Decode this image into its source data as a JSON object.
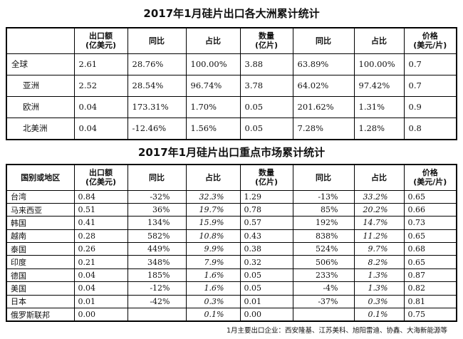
{
  "table1": {
    "title": "2017年1月硅片出口各大洲累计统计",
    "headers": [
      "出口额\n(亿美元)",
      "同比",
      "占比",
      "数量\n(亿片)",
      "同比",
      "占比",
      "价格\n(美元/片)"
    ],
    "rows": [
      [
        "全球",
        "2.61",
        "28.76%",
        "100.00%",
        "3.88",
        "63.89%",
        "100.00%",
        "0.7"
      ],
      [
        "亚洲",
        "2.52",
        "28.54%",
        "96.74%",
        "3.78",
        "64.02%",
        "97.42%",
        "0.7"
      ],
      [
        "欧洲",
        "0.04",
        "173.31%",
        "1.70%",
        "0.05",
        "201.62%",
        "1.31%",
        "0.9"
      ],
      [
        "北美洲",
        "0.04",
        "-12.46%",
        "1.56%",
        "0.05",
        "7.28%",
        "1.28%",
        "0.8"
      ]
    ]
  },
  "table2": {
    "title": "2017年1月硅片出口重点市场累计统计",
    "headers": [
      "国别或地区",
      "出口额\n(亿美元)",
      "同比",
      "占比",
      "数量\n(亿片)",
      "同比",
      "占比",
      "价格\n(美元/片)"
    ],
    "rows": [
      [
        "台湾",
        "0.84",
        "-32%",
        "32.3%",
        "1.29",
        "-13%",
        "33.2%",
        "0.65"
      ],
      [
        "马来西亚",
        "0.51",
        "36%",
        "19.7%",
        "0.78",
        "85%",
        "20.2%",
        "0.66"
      ],
      [
        "韩国",
        "0.41",
        "134%",
        "15.9%",
        "0.57",
        "192%",
        "14.7%",
        "0.73"
      ],
      [
        "越南",
        "0.28",
        "582%",
        "10.8%",
        "0.43",
        "838%",
        "11.2%",
        "0.65"
      ],
      [
        "泰国",
        "0.26",
        "449%",
        "9.9%",
        "0.38",
        "524%",
        "9.7%",
        "0.68"
      ],
      [
        "印度",
        "0.21",
        "348%",
        "7.9%",
        "0.32",
        "506%",
        "8.2%",
        "0.65"
      ],
      [
        "德国",
        "0.04",
        "185%",
        "1.6%",
        "0.05",
        "233%",
        "1.3%",
        "0.87"
      ],
      [
        "美国",
        "0.04",
        "-12%",
        "1.6%",
        "0.05",
        "-4%",
        "1.3%",
        "0.82"
      ],
      [
        "日本",
        "0.01",
        "-42%",
        "0.3%",
        "0.01",
        "-37%",
        "0.3%",
        "0.81"
      ],
      [
        "俄罗斯联邦",
        "0.00",
        null,
        "0.1%",
        "0.00",
        null,
        "0.1%",
        "0.75"
      ]
    ]
  },
  "footnote": "1月主要出口企业：西安隆基、江苏美科、旭阳雷迪、协鑫、大海新能源等"
}
